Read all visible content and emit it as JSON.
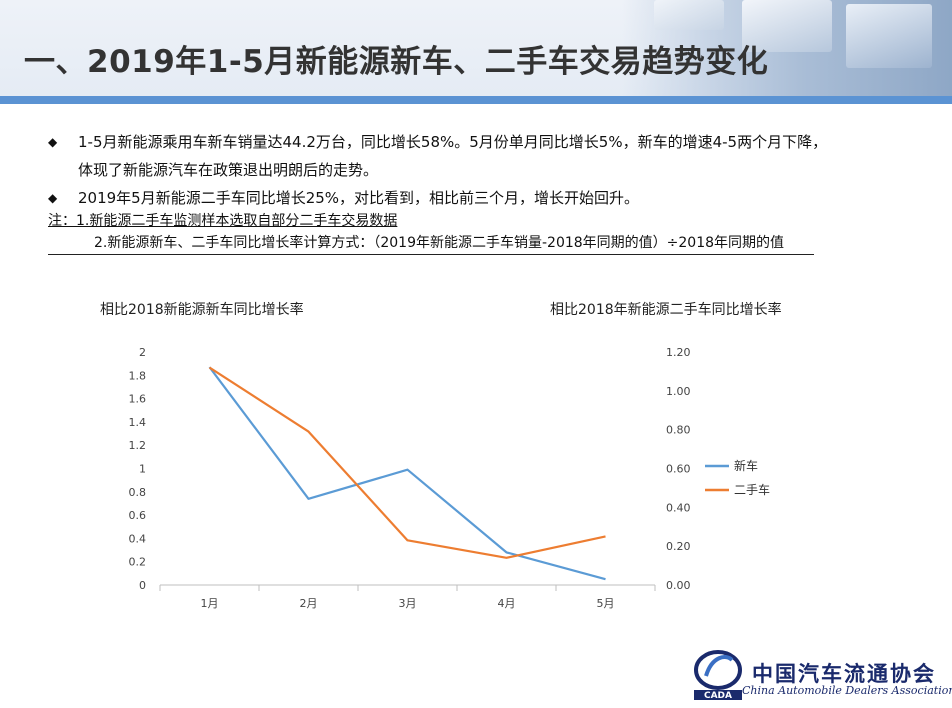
{
  "title": "一、2019年1-5月新能源新车、二手车交易趋势变化",
  "bullets": [
    {
      "mark": "◆",
      "text": "1-5月新能源乘用车新车销量达44.2万台，同比增长58%。5月份单月同比增长5%，新车的增速4-5两个月下降，",
      "cont": "体现了新能源汽车在政策退出明朗后的走势。"
    },
    {
      "mark": "◆",
      "text": "2019年5月新能源二手车同比增长25%，对比看到，相比前三个月，增长开始回升。"
    }
  ],
  "notes": {
    "line1": "注：1.新能源二手车监测样本选取自部分二手车交易数据",
    "line2": "2.新能源新车、二手车同比增长率计算方式：（2019年新能源二手车销量-2018年同期的值）÷2018年同期的值"
  },
  "chart_data": {
    "type": "line",
    "title_left": "相比2018新能源新车同比增长率",
    "title_right": "相比2018年新能源二手车同比增长率",
    "categories": [
      "1月",
      "2月",
      "3月",
      "4月",
      "5月"
    ],
    "y_left": {
      "min": 0,
      "max": 2,
      "ticks": [
        "0",
        "0.2",
        "0.4",
        "0.6",
        "0.8",
        "1",
        "1.2",
        "1.4",
        "1.6",
        "1.8",
        "2"
      ]
    },
    "y_right": {
      "min": 0,
      "max": 1.2,
      "ticks": [
        "0.00",
        "0.20",
        "0.40",
        "0.60",
        "0.80",
        "1.00",
        "1.20"
      ]
    },
    "series": [
      {
        "name": "新车",
        "axis": "left",
        "color": "#5b9bd5",
        "values": [
          1.87,
          0.74,
          0.99,
          0.28,
          0.05
        ]
      },
      {
        "name": "二手车",
        "axis": "right",
        "color": "#ed7d31",
        "values": [
          1.12,
          0.79,
          0.23,
          0.14,
          0.25
        ]
      }
    ],
    "legend_position": "right",
    "grid": false
  },
  "logo": {
    "cn": "中国汽车流通协会",
    "en": "China Automobile Dealers Association",
    "mark_text": "CADA"
  }
}
